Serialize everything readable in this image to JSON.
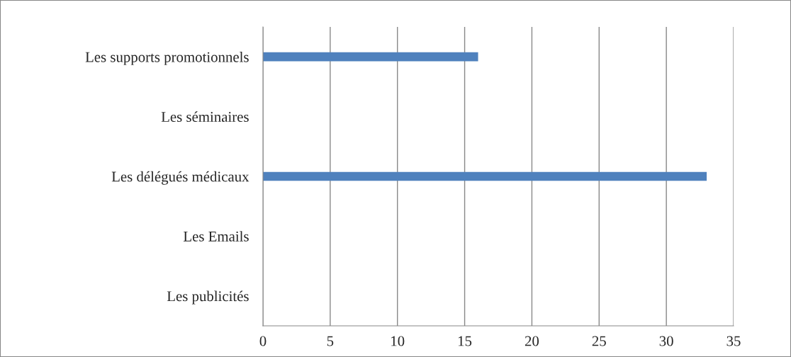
{
  "chart_data": {
    "type": "bar",
    "orientation": "horizontal",
    "categories": [
      "Les supports promotionnels",
      "Les séminaires",
      "Les délégués médicaux",
      "Les Emails",
      "Les publicités"
    ],
    "series": [
      {
        "color": "#4f81bd",
        "values": [
          16,
          null,
          33,
          null,
          null
        ]
      }
    ],
    "xlim": [
      0,
      35
    ],
    "xticks": [
      0,
      5,
      10,
      15,
      20,
      25,
      30,
      35
    ],
    "grid": "x",
    "legend": false
  }
}
